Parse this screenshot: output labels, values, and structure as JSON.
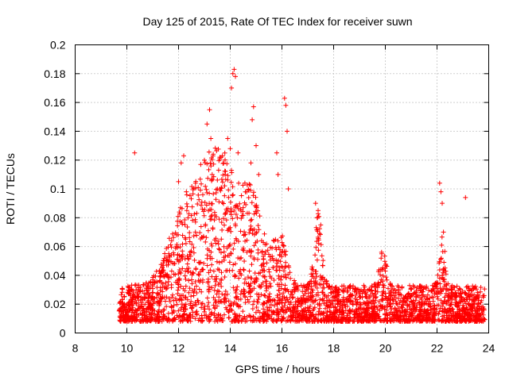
{
  "chart_data": {
    "type": "scatter",
    "title": "Day 125 of 2015, Rate Of TEC Index for receiver suwn",
    "xlabel": "GPS time / hours",
    "ylabel": "ROTI / TECUs",
    "xlim": [
      8,
      24
    ],
    "ylim": [
      0,
      0.2
    ],
    "xticks": [
      "8",
      "10",
      "12",
      "14",
      "16",
      "18",
      "20",
      "22",
      "24"
    ],
    "yticks": [
      "0",
      "0.02",
      "0.04",
      "0.06",
      "0.08",
      "0.1",
      "0.12",
      "0.14",
      "0.16",
      "0.18",
      "0.2"
    ],
    "grid": true,
    "marker": "plus",
    "color": "#ff0000",
    "series": [
      {
        "name": "ROTI",
        "x": [
          10.3,
          12.0,
          12.1,
          12.2,
          12.3,
          13.0,
          13.1,
          13.2,
          13.25,
          13.3,
          13.5,
          13.8,
          13.9,
          14.0,
          14.05,
          14.1,
          14.15,
          14.2,
          14.3,
          14.8,
          14.85,
          14.9,
          15.0,
          15.1,
          15.8,
          15.85,
          16.1,
          16.15,
          16.2,
          16.25,
          17.3,
          17.4,
          17.5,
          22.1,
          22.15,
          22.2,
          22.25,
          23.1
        ],
        "y": [
          0.125,
          0.105,
          0.118,
          0.123,
          0.098,
          0.12,
          0.145,
          0.155,
          0.135,
          0.11,
          0.1,
          0.11,
          0.135,
          0.128,
          0.17,
          0.18,
          0.183,
          0.178,
          0.125,
          0.118,
          0.148,
          0.157,
          0.13,
          0.11,
          0.125,
          0.11,
          0.163,
          0.158,
          0.14,
          0.1,
          0.09,
          0.085,
          0.075,
          0.104,
          0.098,
          0.09,
          0.07,
          0.094
        ]
      }
    ]
  }
}
